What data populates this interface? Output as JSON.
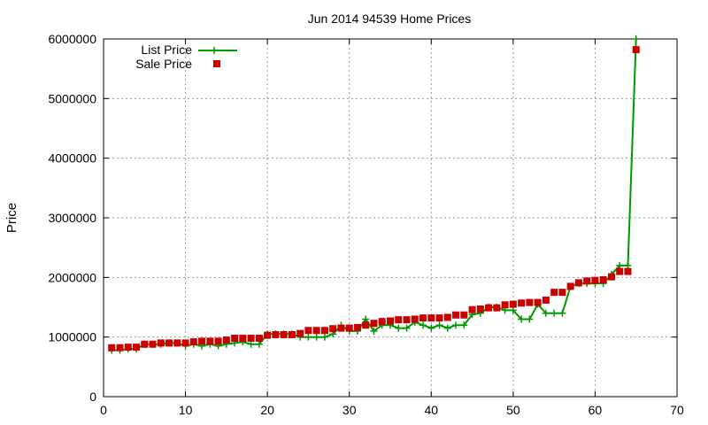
{
  "chart_data": {
    "type": "line",
    "title": "Jun 2014 94539 Home Prices",
    "xlabel": "",
    "ylabel": "Price",
    "xlim": [
      0,
      70
    ],
    "ylim": [
      0,
      6000000
    ],
    "xticks": [
      0,
      10,
      20,
      30,
      40,
      50,
      60,
      70
    ],
    "yticks": [
      0,
      1000000,
      2000000,
      3000000,
      4000000,
      5000000,
      6000000
    ],
    "grid": true,
    "legend_position": "top-left",
    "x": [
      1,
      2,
      3,
      4,
      5,
      6,
      7,
      8,
      9,
      10,
      11,
      12,
      13,
      14,
      15,
      16,
      17,
      18,
      19,
      20,
      21,
      22,
      23,
      24,
      25,
      26,
      27,
      28,
      29,
      30,
      31,
      32,
      33,
      34,
      35,
      36,
      37,
      38,
      39,
      40,
      41,
      42,
      43,
      44,
      45,
      46,
      47,
      48,
      49,
      50,
      51,
      52,
      53,
      54,
      55,
      56,
      57,
      58,
      59,
      60,
      61,
      62,
      63,
      64,
      65
    ],
    "series": [
      {
        "name": "List Price",
        "style": "line+plus",
        "color": "#009900",
        "values": [
          780000,
          780000,
          800000,
          800000,
          880000,
          880000,
          880000,
          900000,
          900000,
          850000,
          880000,
          850000,
          880000,
          850000,
          880000,
          900000,
          920000,
          880000,
          880000,
          1050000,
          1050000,
          1050000,
          1050000,
          1000000,
          1000000,
          1000000,
          1000000,
          1050000,
          1200000,
          1100000,
          1100000,
          1300000,
          1100000,
          1200000,
          1200000,
          1150000,
          1150000,
          1250000,
          1200000,
          1150000,
          1200000,
          1150000,
          1200000,
          1200000,
          1380000,
          1400000,
          1500000,
          1500000,
          1450000,
          1450000,
          1300000,
          1300000,
          1550000,
          1400000,
          1400000,
          1400000,
          1850000,
          1900000,
          1900000,
          1900000,
          1900000,
          2050000,
          2200000,
          2200000,
          6000000
        ]
      },
      {
        "name": "Sale Price",
        "style": "square",
        "color": "#cc0000",
        "values": [
          820000,
          820000,
          830000,
          830000,
          880000,
          880000,
          900000,
          900000,
          900000,
          900000,
          920000,
          930000,
          930000,
          930000,
          950000,
          980000,
          980000,
          980000,
          980000,
          1030000,
          1040000,
          1040000,
          1040000,
          1060000,
          1110000,
          1110000,
          1110000,
          1140000,
          1150000,
          1150000,
          1160000,
          1200000,
          1230000,
          1260000,
          1270000,
          1290000,
          1290000,
          1300000,
          1320000,
          1320000,
          1320000,
          1330000,
          1370000,
          1370000,
          1460000,
          1470000,
          1490000,
          1490000,
          1540000,
          1550000,
          1570000,
          1580000,
          1580000,
          1620000,
          1750000,
          1750000,
          1850000,
          1910000,
          1940000,
          1950000,
          1960000,
          2010000,
          2100000,
          2100000,
          5820000
        ]
      }
    ]
  }
}
